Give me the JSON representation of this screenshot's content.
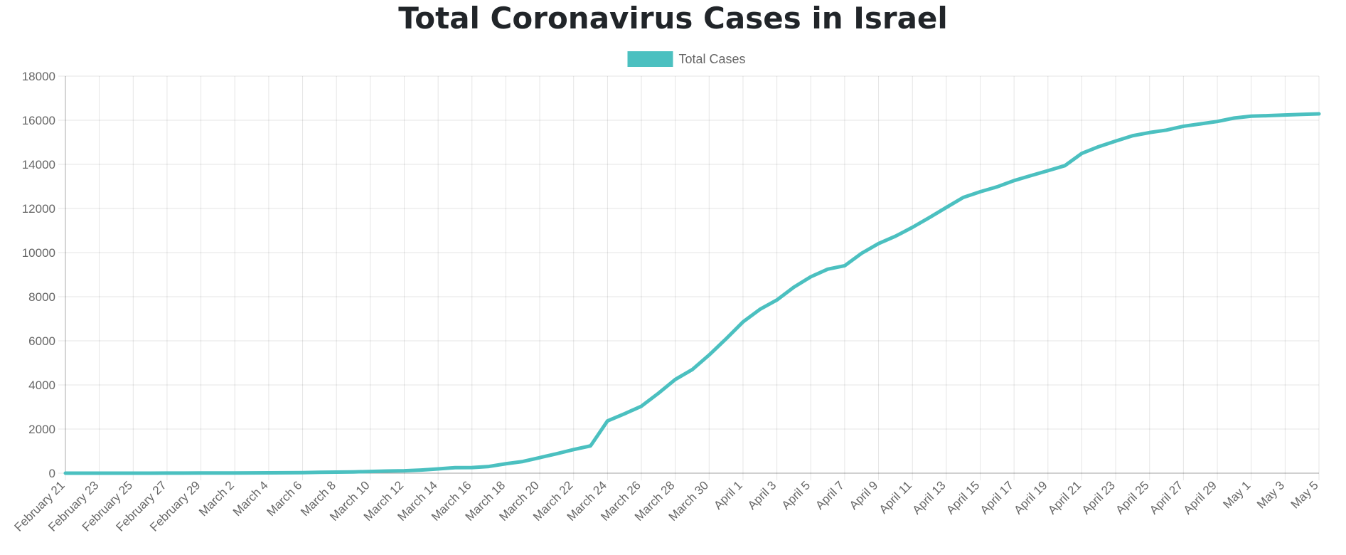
{
  "chart_data": {
    "type": "line",
    "title": "Total Coronavirus Cases in Israel",
    "xlabel": "",
    "ylabel": "",
    "ylim": [
      0,
      18000
    ],
    "yticks": [
      0,
      2000,
      4000,
      6000,
      8000,
      10000,
      12000,
      14000,
      16000,
      18000
    ],
    "grid": true,
    "legend_position": "top-center",
    "line_color": "#4bc0c0",
    "x_tick_labels": [
      "February 21",
      "February 23",
      "February 25",
      "February 27",
      "February 29",
      "March 2",
      "March 4",
      "March 6",
      "March 8",
      "March 10",
      "March 12",
      "March 14",
      "March 16",
      "March 18",
      "March 20",
      "March 22",
      "March 24",
      "March 26",
      "March 28",
      "March 30",
      "April 1",
      "April 3",
      "April 5",
      "April 7",
      "April 9",
      "April 11",
      "April 13",
      "April 15",
      "April 17",
      "April 19",
      "April 21",
      "April 23",
      "April 25",
      "April 27",
      "April 29",
      "May 1",
      "May 3",
      "May 5"
    ],
    "series": [
      {
        "name": "Total Cases",
        "x": [
          "February 21",
          "February 22",
          "February 23",
          "February 24",
          "February 25",
          "February 26",
          "February 27",
          "February 28",
          "February 29",
          "March 1",
          "March 2",
          "March 3",
          "March 4",
          "March 5",
          "March 6",
          "March 7",
          "March 8",
          "March 9",
          "March 10",
          "March 11",
          "March 12",
          "March 13",
          "March 14",
          "March 15",
          "March 16",
          "March 17",
          "March 18",
          "March 19",
          "March 20",
          "March 21",
          "March 22",
          "March 23",
          "March 24",
          "March 25",
          "March 26",
          "March 27",
          "March 28",
          "March 29",
          "March 30",
          "March 31",
          "April 1",
          "April 2",
          "April 3",
          "April 4",
          "April 5",
          "April 6",
          "April 7",
          "April 8",
          "April 9",
          "April 10",
          "April 11",
          "April 12",
          "April 13",
          "April 14",
          "April 15",
          "April 16",
          "April 17",
          "April 18",
          "April 19",
          "April 20",
          "April 21",
          "April 22",
          "April 23",
          "April 24",
          "April 25",
          "April 26",
          "April 27",
          "April 28",
          "April 29",
          "April 30",
          "May 1",
          "May 2",
          "May 3",
          "May 4",
          "May 5"
        ],
        "values": [
          1,
          1,
          1,
          2,
          2,
          2,
          3,
          3,
          7,
          10,
          10,
          12,
          15,
          21,
          25,
          39,
          50,
          58,
          75,
          97,
          109,
          143,
          193,
          250,
          255,
          304,
          427,
          529,
          705,
          883,
          1071,
          1238,
          2369,
          2693,
          3035,
          3619,
          4247,
          4695,
          5358,
          6092,
          6857,
          7428,
          7851,
          8430,
          8904,
          9248,
          9404,
          9968,
          10408,
          10743,
          11145,
          11586,
          12046,
          12501,
          12758,
          12982,
          13265,
          13491,
          13713,
          13942,
          14498,
          14803,
          15058,
          15298,
          15443,
          15555,
          15728,
          15834,
          15946,
          16101,
          16185,
          16208,
          16237,
          16268,
          16289
        ]
      }
    ]
  }
}
